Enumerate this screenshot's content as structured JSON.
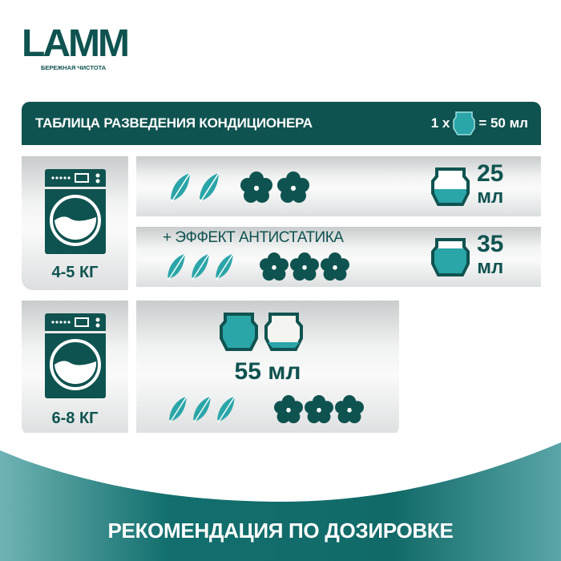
{
  "logo": {
    "brand": "LAMM",
    "tagline": "БЕРЕЖНАЯ ЧИСТОТА"
  },
  "header": {
    "title": "ТАБЛИЦА РАЗВЕДЕНИЯ КОНДИЦИОНЕРА",
    "prefix": "1 x",
    "equals": "= 50 мл"
  },
  "sections": [
    {
      "load": "4-5 КГ",
      "options": [
        {
          "effect": "",
          "feathers": 2,
          "flowers": 2,
          "cup_fill": 0.5,
          "amount": "25",
          "unit": "мл"
        },
        {
          "effect": "+ ЭФФЕКТ АНТИСТАТИКА",
          "feathers": 3,
          "flowers": 3,
          "cup_fill": 0.7,
          "amount": "35",
          "unit": "мл"
        }
      ]
    },
    {
      "load": "6-8 КГ",
      "options": [
        {
          "effect": "",
          "feathers": 3,
          "flowers": 3,
          "cup_fill": 1.1,
          "amount": "55 мл"
        }
      ]
    }
  ],
  "footer": {
    "text": "РЕКОМЕНДАЦИЯ ПО ДОЗИРОВКЕ"
  },
  "colors": {
    "dark_teal": "#0f5350",
    "teal": "#2aa5a8",
    "bg": "#ffffff"
  }
}
